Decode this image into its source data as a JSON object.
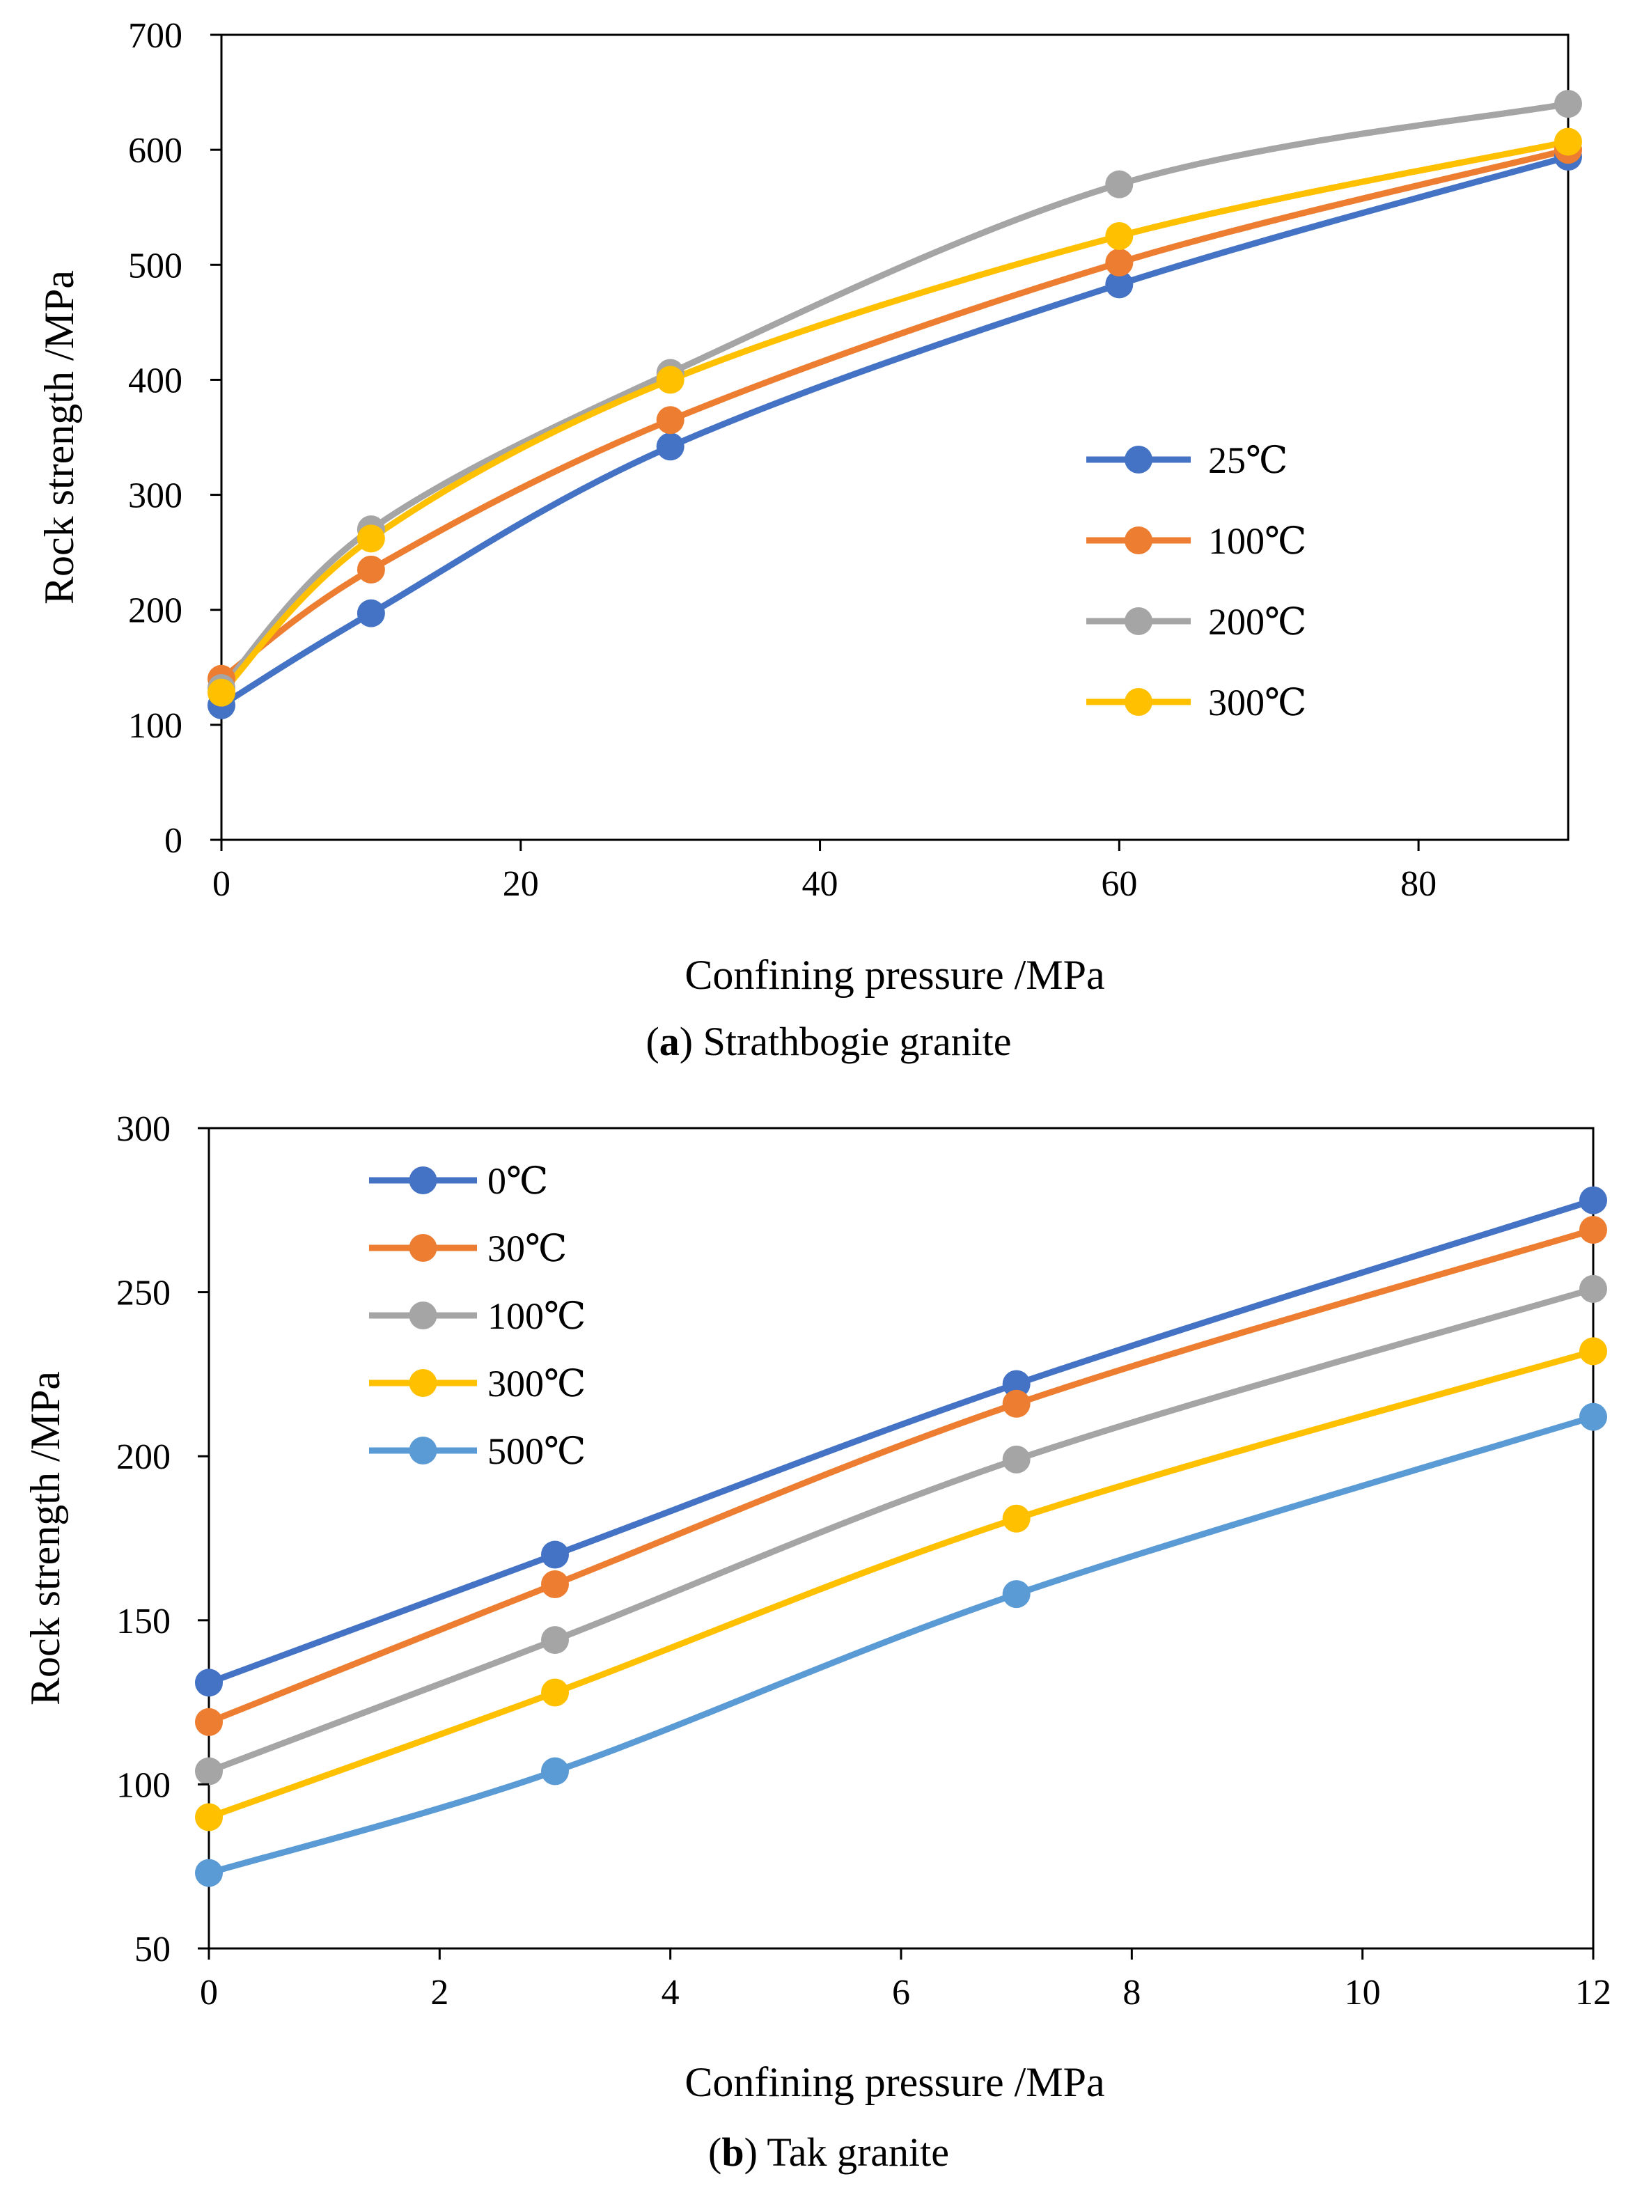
{
  "chart_data": [
    {
      "type": "line",
      "smooth": true,
      "caption_letter": "a",
      "caption_text": "Strathbogie granite",
      "xlabel": "Confining pressure /MPa",
      "ylabel": "Rock strength /MPa",
      "xlim": [
        0,
        90
      ],
      "ylim": [
        0,
        700
      ],
      "xticks": [
        0,
        20,
        40,
        60,
        80
      ],
      "yticks": [
        0,
        100,
        200,
        300,
        400,
        500,
        600,
        700
      ],
      "grid": false,
      "legend_position": "right",
      "x": [
        0,
        10,
        30,
        60,
        90
      ],
      "series": [
        {
          "name": "25℃",
          "color": "#4472C4",
          "values": [
            117,
            197,
            342,
            483,
            594
          ]
        },
        {
          "name": "100℃",
          "color": "#ED7D31",
          "values": [
            140,
            235,
            365,
            502,
            600
          ]
        },
        {
          "name": "200℃",
          "color": "#A5A5A5",
          "values": [
            132,
            270,
            406,
            570,
            640
          ]
        },
        {
          "name": "300℃",
          "color": "#FFC000",
          "values": [
            128,
            262,
            400,
            525,
            607
          ]
        }
      ]
    },
    {
      "type": "line",
      "smooth": true,
      "caption_letter": "b",
      "caption_text": "Tak granite",
      "xlabel": "Confining pressure /MPa",
      "ylabel": "Rock strength /MPa",
      "xlim": [
        0,
        12
      ],
      "ylim": [
        50,
        300
      ],
      "xticks": [
        0,
        2,
        4,
        6,
        8,
        10,
        12
      ],
      "yticks": [
        50,
        100,
        150,
        200,
        250,
        300
      ],
      "grid": false,
      "legend_position": "top-left",
      "x": [
        0,
        3,
        7,
        12
      ],
      "series": [
        {
          "name": "0℃",
          "color": "#4472C4",
          "values": [
            131,
            170,
            222,
            278
          ]
        },
        {
          "name": "30℃",
          "color": "#ED7D31",
          "values": [
            119,
            161,
            216,
            269
          ]
        },
        {
          "name": "100℃",
          "color": "#A5A5A5",
          "values": [
            104,
            144,
            199,
            251
          ]
        },
        {
          "name": "300℃",
          "color": "#FFC000",
          "values": [
            90,
            128,
            181,
            232
          ]
        },
        {
          "name": "500℃",
          "color": "#5B9BD5",
          "values": [
            73,
            104,
            158,
            212
          ]
        }
      ]
    }
  ]
}
